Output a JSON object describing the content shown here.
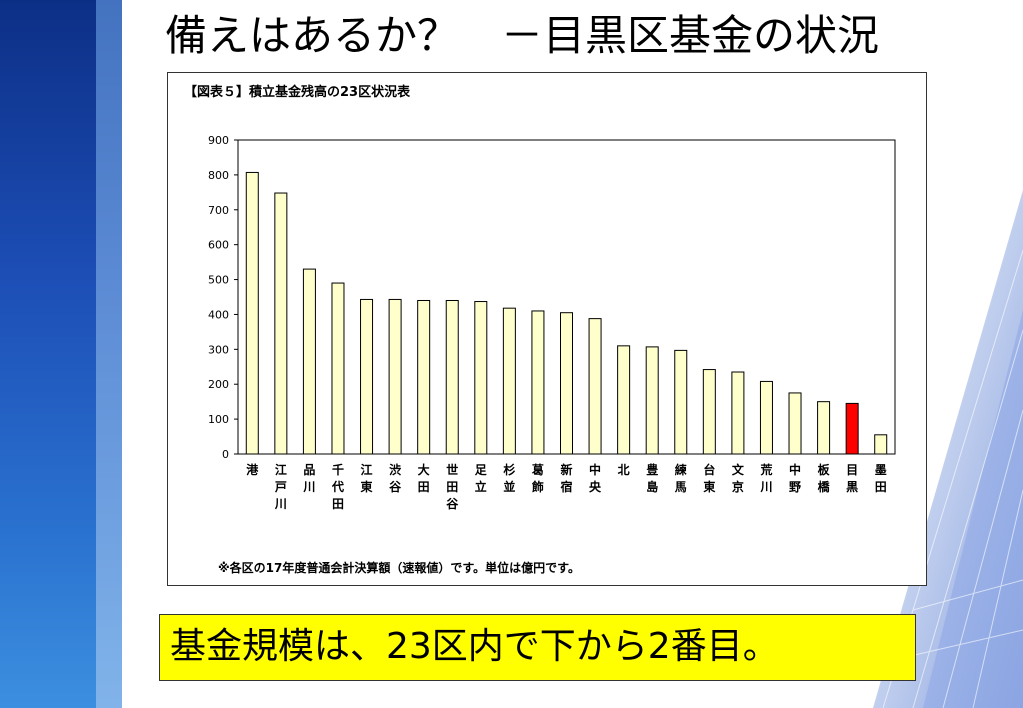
{
  "slide_title": "備えはあるか？　－目黒区基金の状況",
  "chart_caption": "【図表５】積立基金残高の23区状況表",
  "footnote": "※各区の17年度普通会計決算額（速報値）です。単位は億円です。",
  "conclusion": "基金規模は、23区内で下から2番目。",
  "colors": {
    "bar_default": "#ffffcc",
    "bar_highlight": "#ff0000",
    "conclusion_bg": "#ffff00"
  },
  "chart_data": {
    "type": "bar",
    "title": "【図表５】積立基金残高の23区状況表",
    "xlabel": "",
    "ylabel": "",
    "ylim": [
      0,
      900
    ],
    "yticks": [
      0,
      100,
      200,
      300,
      400,
      500,
      600,
      700,
      800,
      900
    ],
    "grid": false,
    "highlight_category": "目黒",
    "categories": [
      "港",
      "江戸川",
      "品川",
      "千代田",
      "江東",
      "渋谷",
      "大田",
      "世田谷",
      "足立",
      "杉並",
      "葛飾",
      "新宿",
      "中央",
      "北",
      "豊島",
      "練馬",
      "台東",
      "文京",
      "荒川",
      "中野",
      "板橋",
      "目黒",
      "墨田"
    ],
    "values": [
      807,
      748,
      530,
      490,
      443,
      443,
      440,
      440,
      437,
      418,
      410,
      405,
      388,
      310,
      307,
      297,
      242,
      235,
      208,
      175,
      150,
      145,
      55
    ]
  }
}
